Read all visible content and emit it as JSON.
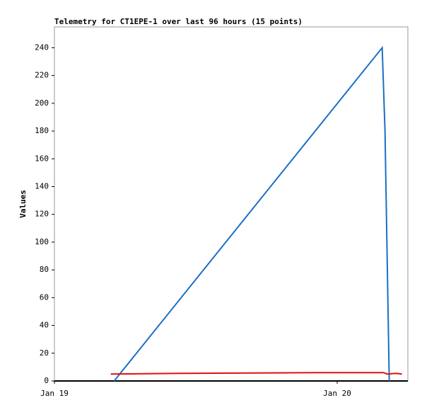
{
  "chart_data": {
    "type": "line",
    "title": "Telemetry for CT1EPE-1 over last 96 hours (15 points)",
    "y_label": "Values",
    "series": [
      {
        "color": "#1a6fc4",
        "x": [
          5.07,
          27.82,
          27.94,
          28.06,
          28.18,
          28.3,
          28.42
        ],
        "values": [
          0,
          240,
          210,
          180,
          120,
          60,
          0
        ]
      },
      {
        "color": "#e01010",
        "x": [
          4.78,
          10.8,
          22.15,
          27.94,
          28.24,
          29.0,
          29.5
        ],
        "values": [
          5,
          5.5,
          6,
          6,
          5,
          5.5,
          5
        ]
      }
    ],
    "xlim": [
      0,
      30
    ],
    "xticks": [
      {
        "value": 0,
        "label": "Jan 19"
      },
      {
        "value": 24,
        "label": "Jan 20"
      }
    ],
    "ylim": [
      0,
      255
    ],
    "yticks": [
      0,
      20,
      40,
      60,
      80,
      100,
      120,
      140,
      160,
      180,
      200,
      220,
      240
    ]
  }
}
